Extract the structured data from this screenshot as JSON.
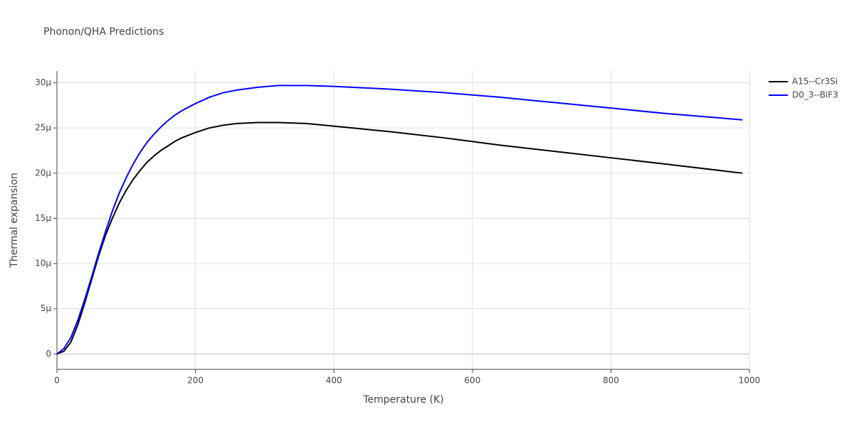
{
  "chart_data": {
    "type": "line",
    "title": "Phonon/QHA Predictions",
    "x_label": "Temperature (K)",
    "y_label": "Thermal expansion",
    "x": [
      0,
      10,
      20,
      30,
      40,
      50,
      60,
      70,
      80,
      90,
      100,
      110,
      120,
      130,
      140,
      150,
      160,
      170,
      180,
      200,
      220,
      240,
      260,
      290,
      320,
      360,
      400,
      480,
      560,
      640,
      720,
      800,
      880,
      990
    ],
    "series": [
      {
        "name": "A15--Cr3Si",
        "color": "#000000",
        "values": [
          0,
          3e-07,
          1.3e-06,
          3.2e-06,
          5.6e-06,
          8.2e-06,
          1.08e-05,
          1.31e-05,
          1.5e-05,
          1.67e-05,
          1.81e-05,
          1.93e-05,
          2.03e-05,
          2.12e-05,
          2.19e-05,
          2.25e-05,
          2.3e-05,
          2.35e-05,
          2.39e-05,
          2.45e-05,
          2.5e-05,
          2.53e-05,
          2.55e-05,
          2.56e-05,
          2.56e-05,
          2.55e-05,
          2.52e-05,
          2.46e-05,
          2.39e-05,
          2.31e-05,
          2.24e-05,
          2.17e-05,
          2.1e-05,
          2e-05
        ]
      },
      {
        "name": "D0_3--BiF3",
        "color": "#0000ff",
        "values": [
          0,
          6e-07,
          1.8e-06,
          3.7e-06,
          6e-06,
          8.5e-06,
          1.11e-05,
          1.35e-05,
          1.58e-05,
          1.78e-05,
          1.95e-05,
          2.1e-05,
          2.23e-05,
          2.34e-05,
          2.43e-05,
          2.51e-05,
          2.58e-05,
          2.64e-05,
          2.69e-05,
          2.77e-05,
          2.84e-05,
          2.89e-05,
          2.92e-05,
          2.95e-05,
          2.97e-05,
          2.97e-05,
          2.96e-05,
          2.93e-05,
          2.89e-05,
          2.84e-05,
          2.78e-05,
          2.72e-05,
          2.66e-05,
          2.59e-05
        ]
      }
    ],
    "xlim": [
      0,
      1000
    ],
    "xticks": [
      0,
      200,
      400,
      600,
      800,
      1000
    ],
    "ylim": [
      -1.7e-06,
      3.13e-05
    ],
    "yticks": [
      0,
      {
        "value": 5e-06,
        "label": "5μ"
      },
      {
        "value": 1e-05,
        "label": "10μ"
      },
      {
        "value": 1.5e-05,
        "label": "15μ"
      },
      {
        "value": 2e-05,
        "label": "20μ"
      },
      {
        "value": 2.5e-05,
        "label": "25μ"
      },
      {
        "value": 3e-05,
        "label": "30μ"
      }
    ],
    "grid": true,
    "legend": "right"
  }
}
